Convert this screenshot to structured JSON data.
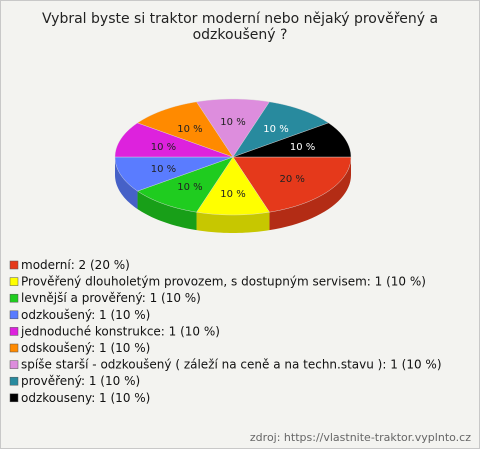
{
  "chart_data": {
    "type": "pie",
    "title": "Vybral byste si traktor moderní nebo nějaký prověřený a odzkoušený ?",
    "categories": [
      "moderní: 2 (20 %)",
      "Prověřený dlouholetým provozem, s dostupným servisem: 1 (10 %)",
      "levnější a prověřený: 1 (10 %)",
      "odzkoušený: 1 (10 %)",
      "jednoduché konstrukce: 1 (10 %)",
      "odskoušený: 1 (10 %)",
      "spíše starší - odzkoušený  ( záleží na ceně a na techn.stavu ): 1 (10 %)",
      "prověřený: 1 (10 %)",
      "odzkouseny: 1 (10 %)"
    ],
    "values": [
      20,
      10,
      10,
      10,
      10,
      10,
      10,
      10,
      10
    ],
    "value_labels": [
      "20 %",
      "10 %",
      "10 %",
      "10 %",
      "10 %",
      "10 %",
      "10 %",
      "10 %",
      "10 %"
    ],
    "colors": [
      "#e5391b",
      "#ffff00",
      "#1fcc1f",
      "#5a7cff",
      "#dd22dd",
      "#ff8a00",
      "#dd8ddd",
      "#288a9e",
      "#000000"
    ],
    "source": "zdroj: https://vlastnite-traktor.vyplnto.cz"
  }
}
